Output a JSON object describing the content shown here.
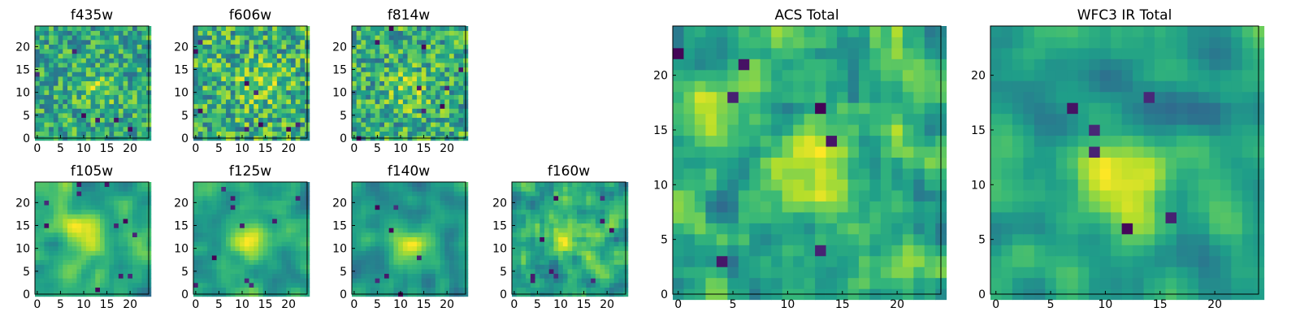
{
  "chart_data": [
    {
      "type": "heatmap",
      "title": "f435w",
      "size": 25,
      "xticks": [
        0,
        5,
        10,
        15,
        20
      ],
      "yticks": [
        0,
        5,
        10,
        15,
        20
      ],
      "seed": 11,
      "smooth": 0,
      "colormap": "viridis"
    },
    {
      "type": "heatmap",
      "title": "f606w",
      "size": 25,
      "xticks": [
        0,
        5,
        10,
        15,
        20
      ],
      "yticks": [
        0,
        5,
        10,
        15,
        20
      ],
      "seed": 23,
      "smooth": 0,
      "colormap": "viridis"
    },
    {
      "type": "heatmap",
      "title": "f814w",
      "size": 25,
      "xticks": [
        0,
        5,
        10,
        15,
        20
      ],
      "yticks": [
        0,
        5,
        10,
        15,
        20
      ],
      "seed": 37,
      "smooth": 0,
      "colormap": "viridis"
    },
    {
      "type": "heatmap",
      "title": "f105w",
      "size": 25,
      "xticks": [
        0,
        5,
        10,
        15,
        20
      ],
      "yticks": [
        0,
        5,
        10,
        15,
        20
      ],
      "seed": 41,
      "smooth": 2,
      "colormap": "viridis"
    },
    {
      "type": "heatmap",
      "title": "f125w",
      "size": 25,
      "xticks": [
        0,
        5,
        10,
        15,
        20
      ],
      "yticks": [
        0,
        5,
        10,
        15,
        20
      ],
      "seed": 53,
      "smooth": 2,
      "colormap": "viridis"
    },
    {
      "type": "heatmap",
      "title": "f140w",
      "size": 25,
      "xticks": [
        0,
        5,
        10,
        15,
        20
      ],
      "yticks": [
        0,
        5,
        10,
        15,
        20
      ],
      "seed": 67,
      "smooth": 2,
      "colormap": "viridis"
    },
    {
      "type": "heatmap",
      "title": "f160w",
      "size": 25,
      "xticks": [
        0,
        5,
        10,
        15,
        20
      ],
      "yticks": [
        0,
        5,
        10,
        15,
        20
      ],
      "seed": 79,
      "smooth": 1,
      "colormap": "viridis"
    },
    {
      "type": "heatmap",
      "title": "ACS Total",
      "size": 25,
      "xticks": [
        0,
        5,
        10,
        15,
        20
      ],
      "yticks": [
        0,
        5,
        10,
        15,
        20
      ],
      "seed": 83,
      "smooth": 1,
      "colormap": "viridis"
    },
    {
      "type": "heatmap",
      "title": "WFC3 IR Total",
      "size": 25,
      "xticks": [
        0,
        5,
        10,
        15,
        20
      ],
      "yticks": [
        0,
        5,
        10,
        15,
        20
      ],
      "seed": 97,
      "smooth": 2,
      "colormap": "viridis"
    }
  ],
  "colors": {
    "viridis_dark": "#440154",
    "viridis_mid": "#21908d",
    "viridis_light": "#fde725"
  }
}
